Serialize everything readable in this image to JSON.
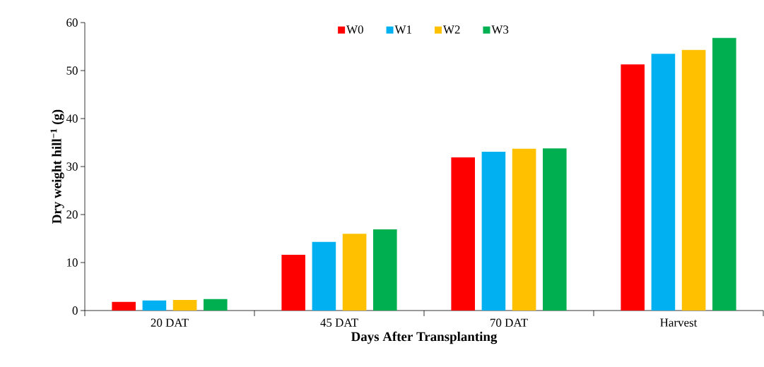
{
  "chart_data": {
    "type": "bar",
    "xlabel": "Days After Transplanting",
    "ylabel": "**Dry weight hill$^{−1}$ (g)**",
    "categories": [
      "20 DAT",
      "45 DAT",
      "70 DAT",
      "Harvest"
    ],
    "series": [
      {
        "name": "W0",
        "color": "#ff0000",
        "values": [
          1.8,
          11.6,
          31.9,
          51.3
        ]
      },
      {
        "name": "W1",
        "color": "#00b0f0",
        "values": [
          2.1,
          14.3,
          33.1,
          53.5
        ]
      },
      {
        "name": "W2",
        "color": "#ffc000",
        "values": [
          2.2,
          16.0,
          33.7,
          54.3
        ]
      },
      {
        "name": "W3",
        "color": "#00b050",
        "values": [
          2.4,
          16.9,
          33.8,
          56.8
        ]
      }
    ],
    "ylim": [
      0,
      60
    ],
    "yticks": [
      0,
      10,
      20,
      30,
      40,
      50,
      60
    ],
    "grid": false,
    "legend": "top"
  }
}
